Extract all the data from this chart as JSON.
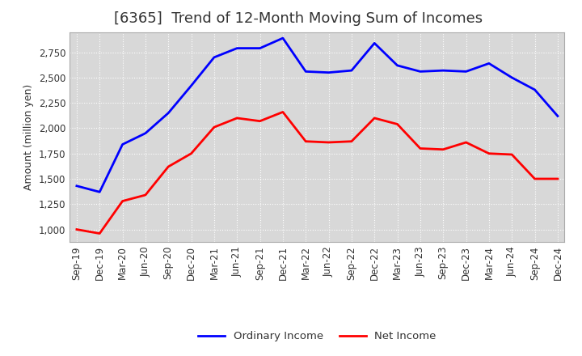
{
  "title": "[6365]  Trend of 12-Month Moving Sum of Incomes",
  "ylabel": "Amount (million yen)",
  "x_labels": [
    "Sep-19",
    "Dec-19",
    "Mar-20",
    "Jun-20",
    "Sep-20",
    "Dec-20",
    "Mar-21",
    "Jun-21",
    "Sep-21",
    "Dec-21",
    "Mar-22",
    "Jun-22",
    "Sep-22",
    "Dec-22",
    "Mar-23",
    "Jun-23",
    "Sep-23",
    "Dec-23",
    "Mar-24",
    "Jun-24",
    "Sep-24",
    "Dec-24"
  ],
  "ordinary_income": [
    1430,
    1370,
    1840,
    1950,
    2150,
    2420,
    2700,
    2790,
    2790,
    2890,
    2560,
    2550,
    2570,
    2840,
    2620,
    2560,
    2570,
    2560,
    2640,
    2500,
    2380,
    2120
  ],
  "net_income": [
    1000,
    960,
    1280,
    1340,
    1620,
    1750,
    2010,
    2100,
    2070,
    2160,
    1870,
    1860,
    1870,
    2100,
    2040,
    1800,
    1790,
    1860,
    1750,
    1740,
    1500,
    1500
  ],
  "ordinary_color": "#0000FF",
  "net_color": "#FF0000",
  "ylim_min": 875,
  "ylim_max": 2950,
  "yticks": [
    1000,
    1250,
    1500,
    1750,
    2000,
    2250,
    2500,
    2750
  ],
  "background_color": "#FFFFFF",
  "plot_bg_color": "#D8D8D8",
  "grid_color": "#FFFFFF",
  "title_fontsize": 13,
  "title_color": "#333333",
  "axis_label_fontsize": 9,
  "tick_fontsize": 8.5,
  "legend_labels": [
    "Ordinary Income",
    "Net Income"
  ],
  "legend_fontsize": 9.5
}
